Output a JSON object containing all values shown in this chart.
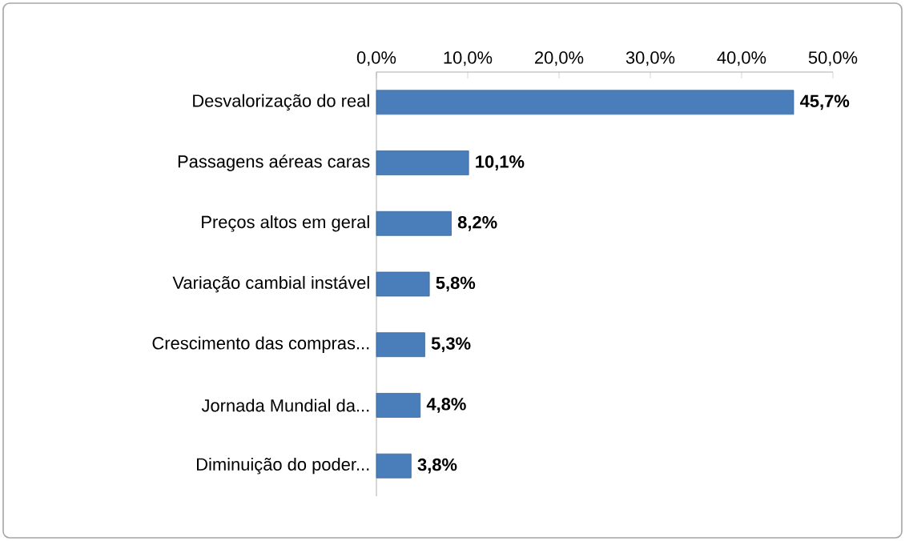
{
  "chart_data": {
    "type": "bar",
    "orientation": "horizontal",
    "categories": [
      "Desvalorização do real",
      "Passagens aéreas caras",
      "Preços altos em geral",
      "Variação cambial instável",
      "Crescimento das compras...",
      "Jornada Mundial da...",
      "Diminuição do poder..."
    ],
    "values": [
      45.7,
      10.1,
      8.2,
      5.8,
      5.3,
      4.8,
      3.8
    ],
    "value_labels": [
      "45,7%",
      "10,1%",
      "8,2%",
      "5,8%",
      "5,3%",
      "4,8%",
      "3,8%"
    ],
    "color": "#4a7ebb",
    "xlim": [
      0,
      50
    ],
    "xticks": [
      {
        "value": 0,
        "label": "0,0%"
      },
      {
        "value": 10,
        "label": "10,0%"
      },
      {
        "value": 20,
        "label": "20,0%"
      },
      {
        "value": 30,
        "label": "30,0%"
      },
      {
        "value": 40,
        "label": "40,0%"
      },
      {
        "value": 50,
        "label": "50,0%"
      }
    ]
  }
}
